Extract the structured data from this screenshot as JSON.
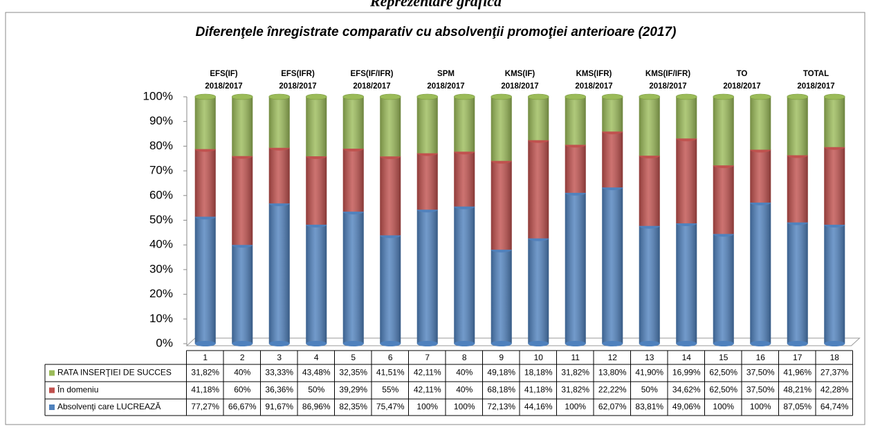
{
  "heading": "Reprezentare grafică",
  "chart_data": {
    "type": "stacked-percent-cylinder",
    "title": "Diferenţele înregistrate comparativ cu absolvenţii promoţiei anterioare (2017)",
    "groups": [
      {
        "name": "EFS(IF)",
        "period": "2018/2017"
      },
      {
        "name": "EFS(IFR)",
        "period": "2018/2017"
      },
      {
        "name": "EFS(IF/IFR)",
        "period": "2018/2017"
      },
      {
        "name": "SPM",
        "period": "2018/2017"
      },
      {
        "name": "KMS(IF)",
        "period": "2018/2017"
      },
      {
        "name": "KMS(IFR)",
        "period": "2018/2017"
      },
      {
        "name": "KMS(IF/IFR)",
        "period": "2018/2017"
      },
      {
        "name": "TO",
        "period": "2018/2017"
      },
      {
        "name": "TOTAL",
        "period": "2018/2017"
      }
    ],
    "categories": [
      "1",
      "2",
      "3",
      "4",
      "5",
      "6",
      "7",
      "8",
      "9",
      "10",
      "11",
      "12",
      "13",
      "14",
      "15",
      "16",
      "17",
      "18"
    ],
    "series": [
      {
        "name": "Absolvenţi care LUCREAZĂ",
        "color": "#4f81bd",
        "values": [
          77.27,
          66.67,
          91.67,
          86.96,
          82.35,
          75.47,
          100,
          100,
          72.13,
          44.16,
          100,
          62.07,
          83.81,
          49.06,
          100,
          100,
          87.05,
          64.74
        ],
        "value_labels": [
          "77,27%",
          "66,67%",
          "91,67%",
          "86,96%",
          "82,35%",
          "75,47%",
          "100%",
          "100%",
          "72,13%",
          "44,16%",
          "100%",
          "62,07%",
          "83,81%",
          "49,06%",
          "100%",
          "100%",
          "87,05%",
          "64,74%"
        ]
      },
      {
        "name": "În  domeniu",
        "color": "#c0504d",
        "values": [
          41.18,
          60,
          36.36,
          50,
          39.29,
          55,
          42.11,
          40,
          68.18,
          41.18,
          31.82,
          22.22,
          50,
          34.62,
          62.5,
          37.5,
          48.21,
          42.28
        ],
        "value_labels": [
          "41,18%",
          "60%",
          "36,36%",
          "50%",
          "39,29%",
          "55%",
          "42,11%",
          "40%",
          "68,18%",
          "41,18%",
          "31,82%",
          "22,22%",
          "50%",
          "34,62%",
          "62,50%",
          "37,50%",
          "48,21%",
          "42,28%"
        ]
      },
      {
        "name": "RATA INSERŢIEI  DE SUCCES",
        "color": "#9bbb59",
        "values": [
          31.82,
          40,
          33.33,
          43.48,
          32.35,
          41.51,
          42.11,
          40,
          49.18,
          18.18,
          31.82,
          13.8,
          41.9,
          16.99,
          62.5,
          37.5,
          41.96,
          27.37
        ],
        "value_labels": [
          "31,82%",
          "40%",
          "33,33%",
          "43,48%",
          "32,35%",
          "41,51%",
          "42,11%",
          "40%",
          "49,18%",
          "18,18%",
          "31,82%",
          "13,80%",
          "41,90%",
          "16,99%",
          "62,50%",
          "37,50%",
          "41,96%",
          "27,37%"
        ]
      }
    ],
    "ylim": [
      0,
      100
    ],
    "yticks": [
      {
        "value": 0,
        "label": "0%"
      },
      {
        "value": 10,
        "label": "10%"
      },
      {
        "value": 20,
        "label": "20%"
      },
      {
        "value": 30,
        "label": "30%"
      },
      {
        "value": 40,
        "label": "40%"
      },
      {
        "value": 50,
        "label": "50%"
      },
      {
        "value": 60,
        "label": "60%"
      },
      {
        "value": 70,
        "label": "70%"
      },
      {
        "value": 80,
        "label": "80%"
      },
      {
        "value": 90,
        "label": "90%"
      },
      {
        "value": 100,
        "label": "100%"
      }
    ]
  }
}
